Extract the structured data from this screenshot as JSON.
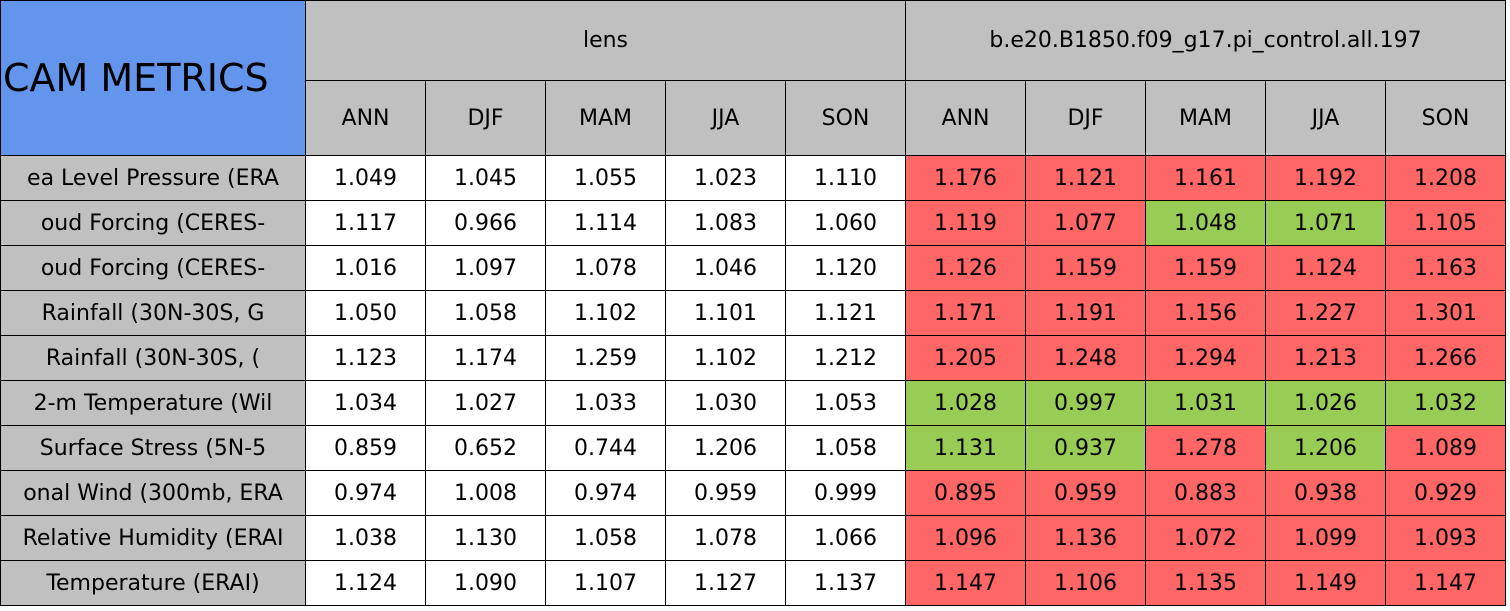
{
  "header": {
    "title": "CAM METRICS",
    "groups": [
      {
        "name": "lens",
        "columns": [
          "ANN",
          "DJF",
          "MAM",
          "JJA",
          "SON"
        ]
      },
      {
        "name": "b.e20.B1850.f09_g17.pi_control.all.197",
        "columns": [
          "ANN",
          "DJF",
          "MAM",
          "JJA",
          "SON"
        ]
      }
    ]
  },
  "table": {
    "rows": [
      {
        "label": "ea Level Pressure (ERA",
        "values": [
          "1.049",
          "1.045",
          "1.055",
          "1.023",
          "1.110",
          "1.176",
          "1.121",
          "1.161",
          "1.192",
          "1.208"
        ],
        "colors": [
          "#ffffff",
          "#ffffff",
          "#ffffff",
          "#ffffff",
          "#ffffff",
          "#ff6666",
          "#ff6666",
          "#ff6666",
          "#ff6666",
          "#ff6666"
        ]
      },
      {
        "label": "oud Forcing (CERES-",
        "values": [
          "1.117",
          "0.966",
          "1.114",
          "1.083",
          "1.060",
          "1.119",
          "1.077",
          "1.048",
          "1.071",
          "1.105"
        ],
        "colors": [
          "#ffffff",
          "#ffffff",
          "#ffffff",
          "#ffffff",
          "#ffffff",
          "#ff6666",
          "#ff6666",
          "#99cc55",
          "#99cc55",
          "#ff6666"
        ]
      },
      {
        "label": "oud Forcing (CERES-",
        "values": [
          "1.016",
          "1.097",
          "1.078",
          "1.046",
          "1.120",
          "1.126",
          "1.159",
          "1.159",
          "1.124",
          "1.163"
        ],
        "colors": [
          "#ffffff",
          "#ffffff",
          "#ffffff",
          "#ffffff",
          "#ffffff",
          "#ff6666",
          "#ff6666",
          "#ff6666",
          "#ff6666",
          "#ff6666"
        ]
      },
      {
        "label": "Rainfall (30N-30S, G",
        "values": [
          "1.050",
          "1.058",
          "1.102",
          "1.101",
          "1.121",
          "1.171",
          "1.191",
          "1.156",
          "1.227",
          "1.301"
        ],
        "colors": [
          "#ffffff",
          "#ffffff",
          "#ffffff",
          "#ffffff",
          "#ffffff",
          "#ff6666",
          "#ff6666",
          "#ff6666",
          "#ff6666",
          "#ff6666"
        ]
      },
      {
        "label": "Rainfall (30N-30S, (",
        "values": [
          "1.123",
          "1.174",
          "1.259",
          "1.102",
          "1.212",
          "1.205",
          "1.248",
          "1.294",
          "1.213",
          "1.266"
        ],
        "colors": [
          "#ffffff",
          "#ffffff",
          "#ffffff",
          "#ffffff",
          "#ffffff",
          "#ff6666",
          "#ff6666",
          "#ff6666",
          "#ff6666",
          "#ff6666"
        ]
      },
      {
        "label": "2-m Temperature (Wil",
        "values": [
          "1.034",
          "1.027",
          "1.033",
          "1.030",
          "1.053",
          "1.028",
          "0.997",
          "1.031",
          "1.026",
          "1.032"
        ],
        "colors": [
          "#ffffff",
          "#ffffff",
          "#ffffff",
          "#ffffff",
          "#ffffff",
          "#99cc55",
          "#99cc55",
          "#99cc55",
          "#99cc55",
          "#99cc55"
        ]
      },
      {
        "label": "Surface Stress (5N-5",
        "values": [
          "0.859",
          "0.652",
          "0.744",
          "1.206",
          "1.058",
          "1.131",
          "0.937",
          "1.278",
          "1.206",
          "1.089"
        ],
        "colors": [
          "#ffffff",
          "#ffffff",
          "#ffffff",
          "#ffffff",
          "#ffffff",
          "#99cc55",
          "#99cc55",
          "#ff6666",
          "#99cc55",
          "#ff6666"
        ]
      },
      {
        "label": "onal Wind (300mb, ERA",
        "values": [
          "0.974",
          "1.008",
          "0.974",
          "0.959",
          "0.999",
          "0.895",
          "0.959",
          "0.883",
          "0.938",
          "0.929"
        ],
        "colors": [
          "#ffffff",
          "#ffffff",
          "#ffffff",
          "#ffffff",
          "#ffffff",
          "#ff6666",
          "#ff6666",
          "#ff6666",
          "#ff6666",
          "#ff6666"
        ]
      },
      {
        "label": "Relative Humidity (ERAI",
        "values": [
          "1.038",
          "1.130",
          "1.058",
          "1.078",
          "1.066",
          "1.096",
          "1.136",
          "1.072",
          "1.099",
          "1.093"
        ],
        "colors": [
          "#ffffff",
          "#ffffff",
          "#ffffff",
          "#ffffff",
          "#ffffff",
          "#ff6666",
          "#ff6666",
          "#ff6666",
          "#ff6666",
          "#ff6666"
        ]
      },
      {
        "label": "Temperature (ERAI)",
        "values": [
          "1.124",
          "1.090",
          "1.107",
          "1.127",
          "1.137",
          "1.147",
          "1.106",
          "1.135",
          "1.149",
          "1.147"
        ],
        "colors": [
          "#ffffff",
          "#ffffff",
          "#ffffff",
          "#ffffff",
          "#ffffff",
          "#ff6666",
          "#ff6666",
          "#ff6666",
          "#ff6666",
          "#ff6666"
        ]
      }
    ]
  }
}
